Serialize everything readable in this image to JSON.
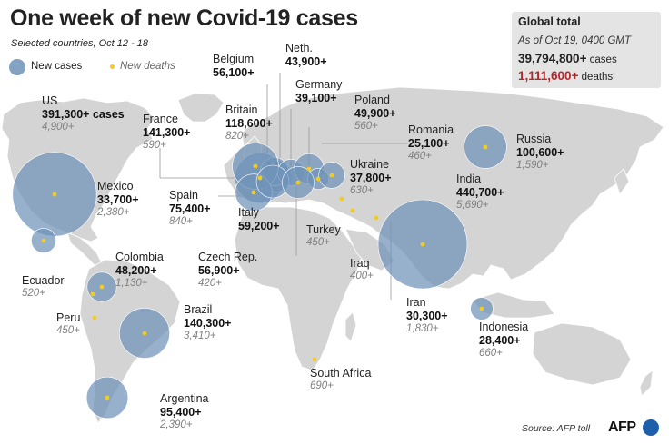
{
  "title": "One week of new Covid-19 cases",
  "subtitle": "Selected countries, Oct 12 - 18",
  "legend": {
    "cases_label": "New cases",
    "deaths_label": "New deaths"
  },
  "global": {
    "heading": "Global total",
    "as_of": "As of Oct 19, 0400 GMT",
    "cases": "39,794,800+",
    "cases_suffix": " cases",
    "deaths": "1,111,600+",
    "deaths_suffix": " deaths"
  },
  "source": "Source: AFP toll",
  "brand": "AFP",
  "colors": {
    "bubble": "#6f93b8",
    "death_dot": "#f2cc1d",
    "land": "#d4d4d4",
    "water": "#ffffff",
    "deaths_total": "#b1282d",
    "brand_ball": "#1d5fa8"
  },
  "countries": [
    {
      "name": "US",
      "cases": "391,300+ cases",
      "deaths": "4,900+",
      "cases_n": 391300
    },
    {
      "name": "Mexico",
      "cases": "33,700+",
      "deaths": "2,380+",
      "cases_n": 33700
    },
    {
      "name": "Colombia",
      "cases": "48,200+",
      "deaths": "1,130+",
      "cases_n": 48200
    },
    {
      "name": "Ecuador",
      "cases": "",
      "deaths": "520+",
      "cases_n": 0
    },
    {
      "name": "Peru",
      "cases": "",
      "deaths": "450+",
      "cases_n": 0
    },
    {
      "name": "Brazil",
      "cases": "140,300+",
      "deaths": "3,410+",
      "cases_n": 140300
    },
    {
      "name": "Argentina",
      "cases": "95,400+",
      "deaths": "2,390+",
      "cases_n": 95400
    },
    {
      "name": "France",
      "cases": "141,300+",
      "deaths": "590+",
      "cases_n": 141300
    },
    {
      "name": "Belgium",
      "cases": "56,100+",
      "deaths": "",
      "cases_n": 56100
    },
    {
      "name": "Neth.",
      "cases": "43,900+",
      "deaths": "",
      "cases_n": 43900
    },
    {
      "name": "Germany",
      "cases": "39,100+",
      "deaths": "",
      "cases_n": 39100
    },
    {
      "name": "Britain",
      "cases": "118,600+",
      "deaths": "820+",
      "cases_n": 118600
    },
    {
      "name": "Poland",
      "cases": "49,900+",
      "deaths": "560+",
      "cases_n": 49900
    },
    {
      "name": "Romania",
      "cases": "25,100+",
      "deaths": "460+",
      "cases_n": 25100
    },
    {
      "name": "Ukraine",
      "cases": "37,800+",
      "deaths": "630+",
      "cases_n": 37800
    },
    {
      "name": "Spain",
      "cases": "75,400+",
      "deaths": "840+",
      "cases_n": 75400
    },
    {
      "name": "Italy",
      "cases": "59,200+",
      "deaths": "",
      "cases_n": 59200
    },
    {
      "name": "Czech Rep.",
      "cases": "56,900+",
      "deaths": "420+",
      "cases_n": 56900
    },
    {
      "name": "Turkey",
      "cases": "",
      "deaths": "450+",
      "cases_n": 0
    },
    {
      "name": "Russia",
      "cases": "100,600+",
      "deaths": "1,590+",
      "cases_n": 100600
    },
    {
      "name": "India",
      "cases": "440,700+",
      "deaths": "5,690+",
      "cases_n": 440700
    },
    {
      "name": "Iraq",
      "cases": "",
      "deaths": "400+",
      "cases_n": 0
    },
    {
      "name": "Iran",
      "cases": "30,300+",
      "deaths": "1,830+",
      "cases_n": 30300
    },
    {
      "name": "Indonesia",
      "cases": "28,400+",
      "deaths": "660+",
      "cases_n": 28400
    },
    {
      "name": "South Africa",
      "cases": "",
      "deaths": "690+",
      "cases_n": 0
    }
  ]
}
